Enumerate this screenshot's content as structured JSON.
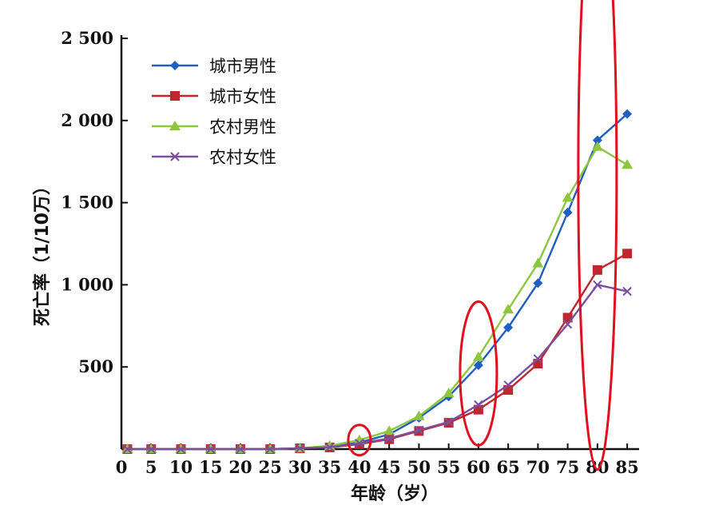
{
  "chart_data": {
    "type": "line",
    "title": "",
    "xlabel": "年龄（岁）",
    "ylabel": "死亡率（1/10万）",
    "x": [
      1,
      5,
      10,
      15,
      20,
      25,
      30,
      35,
      40,
      45,
      50,
      55,
      60,
      65,
      70,
      75,
      80,
      85
    ],
    "x_ticks": [
      "0",
      "5",
      "10",
      "15",
      "20",
      "25",
      "30",
      "35",
      "40",
      "45",
      "50",
      "55",
      "60",
      "65",
      "70",
      "75",
      "80",
      "85"
    ],
    "x_tick_values": [
      0,
      5,
      10,
      15,
      20,
      25,
      30,
      35,
      40,
      45,
      50,
      55,
      60,
      65,
      70,
      75,
      80,
      85
    ],
    "y_ticks": [
      "500",
      "1 000",
      "1 500",
      "2 000",
      "2 500"
    ],
    "y_tick_values": [
      500,
      1000,
      1500,
      2000,
      2500
    ],
    "xlim": [
      0,
      87
    ],
    "ylim": [
      0,
      2500
    ],
    "grid": false,
    "legend_position": "top-left",
    "series": [
      {
        "name": "城市男性",
        "marker": "diamond",
        "color": "#1f5fbf",
        "values": [
          0,
          0,
          0,
          0,
          0,
          0,
          5,
          15,
          40,
          90,
          190,
          320,
          510,
          740,
          1010,
          1440,
          1880,
          2040
        ]
      },
      {
        "name": "城市女性",
        "marker": "square",
        "color": "#c0262d",
        "values": [
          0,
          0,
          0,
          0,
          0,
          0,
          5,
          10,
          30,
          60,
          110,
          160,
          240,
          360,
          520,
          800,
          1090,
          1190
        ]
      },
      {
        "name": "农村男性",
        "marker": "triangle",
        "color": "#8dc63f",
        "values": [
          0,
          0,
          0,
          0,
          0,
          0,
          5,
          20,
          55,
          110,
          200,
          340,
          560,
          850,
          1130,
          1530,
          1840,
          1730
        ]
      },
      {
        "name": "农村女性",
        "marker": "cross",
        "color": "#7a4fa0",
        "values": [
          0,
          0,
          0,
          0,
          0,
          0,
          5,
          12,
          35,
          65,
          115,
          165,
          270,
          390,
          550,
          760,
          1000,
          960
        ]
      }
    ],
    "annotation_color": "#e0101e"
  }
}
